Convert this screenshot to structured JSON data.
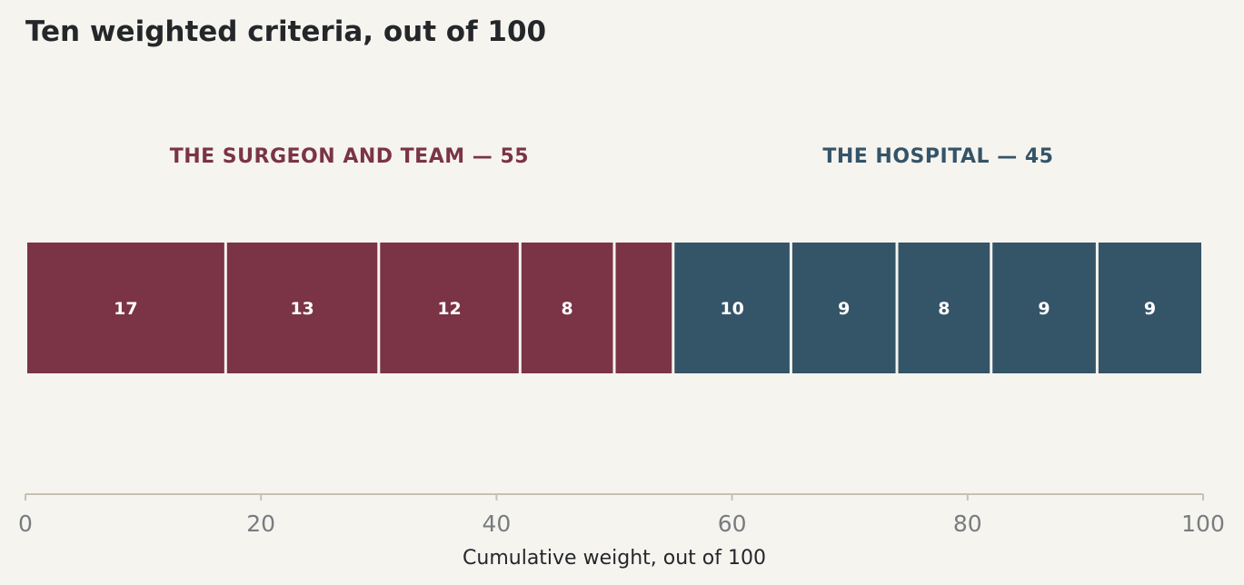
{
  "colors": {
    "background": "#f6f4ef",
    "surgeon": "#7a3446",
    "hospital": "#345468",
    "axis": "#c6c2ae",
    "tick_text": "#787c80",
    "text": "#24272a"
  },
  "chart_data": {
    "type": "bar",
    "orientation": "horizontal-stacked",
    "title": "Ten weighted criteria, out of 100",
    "xlabel": "Cumulative weight, out of 100",
    "ylabel": "",
    "xlim": [
      0,
      100
    ],
    "x_ticks": [
      "0",
      "20",
      "40",
      "60",
      "80",
      "100"
    ],
    "grid": false,
    "groups": [
      {
        "label": "THE SURGEON AND TEAM — 55",
        "color_key": "surgeon",
        "start": 0,
        "end": 55
      },
      {
        "label": "THE HOSPITAL — 45",
        "color_key": "hospital",
        "start": 55,
        "end": 100
      }
    ],
    "series": [
      {
        "group": 0,
        "value": 17,
        "label": "17"
      },
      {
        "group": 0,
        "value": 13,
        "label": "13"
      },
      {
        "group": 0,
        "value": 12,
        "label": "12"
      },
      {
        "group": 0,
        "value": 8,
        "label": "8"
      },
      {
        "group": 0,
        "value": 5,
        "label": ""
      },
      {
        "group": 1,
        "value": 10,
        "label": "10"
      },
      {
        "group": 1,
        "value": 9,
        "label": "9"
      },
      {
        "group": 1,
        "value": 8,
        "label": "8"
      },
      {
        "group": 1,
        "value": 9,
        "label": "9"
      },
      {
        "group": 1,
        "value": 9,
        "label": "9"
      }
    ]
  }
}
